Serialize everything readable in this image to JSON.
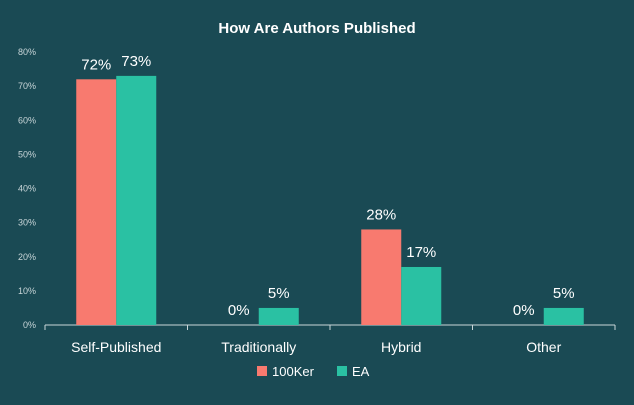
{
  "chart_data": {
    "type": "bar",
    "title": "How Are Authors Published",
    "categories": [
      "Self-Published",
      "Traditionally",
      "Hybrid",
      "Other"
    ],
    "series": [
      {
        "name": "100Ker",
        "color": "#f87a6f",
        "values": [
          72,
          0,
          28,
          0
        ],
        "labels": [
          "72%",
          "0%",
          "28%",
          "0%"
        ]
      },
      {
        "name": "EA",
        "color": "#2ac1a3",
        "values": [
          73,
          5,
          17,
          5
        ],
        "labels": [
          "73%",
          "5%",
          "17%",
          "5%"
        ]
      }
    ],
    "ylim": [
      0,
      80
    ],
    "yticks": [
      0,
      10,
      20,
      30,
      40,
      50,
      60,
      70,
      80
    ],
    "ytick_labels": [
      "0%",
      "10%",
      "20%",
      "30%",
      "40%",
      "50%",
      "60%",
      "70%",
      "80%"
    ],
    "grid": false,
    "legend": "bottom-center"
  }
}
